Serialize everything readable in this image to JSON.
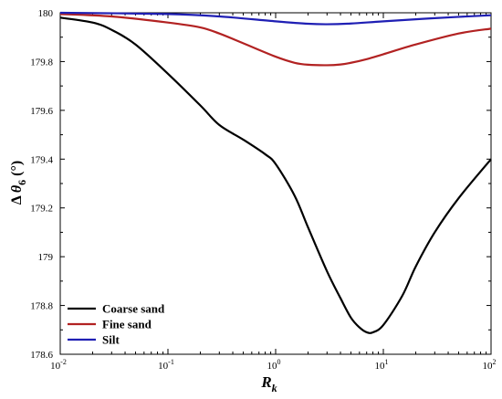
{
  "chart_data": {
    "type": "line",
    "x_scale": "log",
    "xlim": [
      0.01,
      100
    ],
    "ylim": [
      178.6,
      180
    ],
    "x_ticks": [
      {
        "value": 0.01,
        "base": "10",
        "exp": "-2"
      },
      {
        "value": 0.1,
        "base": "10",
        "exp": "-1"
      },
      {
        "value": 1,
        "base": "10",
        "exp": "0"
      },
      {
        "value": 10,
        "base": "10",
        "exp": "1"
      },
      {
        "value": 100,
        "base": "10",
        "exp": "2"
      }
    ],
    "y_ticks": [
      {
        "value": 178.6,
        "label": "178.6"
      },
      {
        "value": 178.8,
        "label": "178.8"
      },
      {
        "value": 179,
        "label": "179"
      },
      {
        "value": 179.2,
        "label": "179.2"
      },
      {
        "value": 179.4,
        "label": "179.4"
      },
      {
        "value": 179.6,
        "label": "179.6"
      },
      {
        "value": 179.8,
        "label": "179.8"
      },
      {
        "value": 180,
        "label": "180"
      }
    ],
    "xlabel": {
      "main": "R",
      "sub": "k"
    },
    "ylabel": {
      "prefix": "Δ",
      "theta": "θ",
      "sub": "6",
      "unit": " (°)"
    },
    "legend_position": "bottom-left",
    "grid": false,
    "series": [
      {
        "name": "Coarse sand",
        "color": "#000000",
        "x": [
          0.01,
          0.02,
          0.03,
          0.05,
          0.1,
          0.2,
          0.3,
          0.5,
          0.8,
          1,
          1.5,
          2,
          3,
          4,
          5,
          6,
          7,
          8,
          10,
          15,
          20,
          30,
          50,
          100
        ],
        "y": [
          179.98,
          179.96,
          179.93,
          179.87,
          179.75,
          179.62,
          179.54,
          179.48,
          179.42,
          179.38,
          179.25,
          179.12,
          178.94,
          178.83,
          178.75,
          178.71,
          178.69,
          178.69,
          178.72,
          178.84,
          178.96,
          179.1,
          179.24,
          179.4
        ]
      },
      {
        "name": "Fine sand",
        "color": "#b22222",
        "x": [
          0.01,
          0.03,
          0.1,
          0.2,
          0.3,
          0.5,
          1,
          1.5,
          2,
          3,
          4,
          5,
          7,
          10,
          20,
          50,
          100
        ],
        "y": [
          179.995,
          179.985,
          179.96,
          179.94,
          179.915,
          179.875,
          179.82,
          179.795,
          179.787,
          179.785,
          179.788,
          179.795,
          179.81,
          179.83,
          179.87,
          179.915,
          179.935
        ]
      },
      {
        "name": "Silt",
        "color": "#1f1fb4",
        "x": [
          0.01,
          0.1,
          0.3,
          1,
          2,
          3,
          5,
          10,
          30,
          100
        ],
        "y": [
          180.0,
          179.995,
          179.985,
          179.965,
          179.955,
          179.953,
          179.956,
          179.965,
          179.978,
          179.99
        ]
      }
    ]
  }
}
